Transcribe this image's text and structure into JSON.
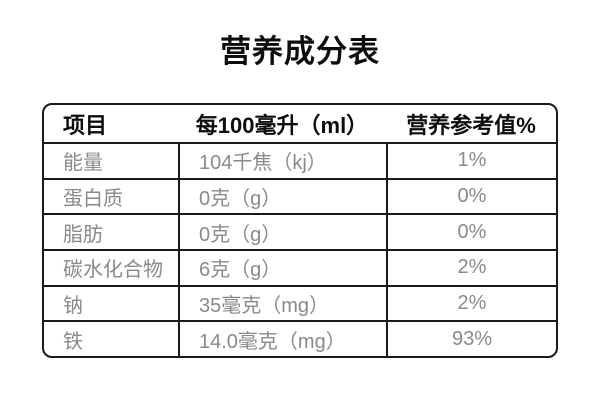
{
  "title": "营养成分表",
  "table": {
    "columns": {
      "item": "项目",
      "amount": "每100毫升（ml）",
      "nrv": "营养参考值%"
    },
    "rows": [
      {
        "item": "能量",
        "value": "104千焦（kj）",
        "nrv": "1%"
      },
      {
        "item": "蛋白质",
        "value": "0克（g）",
        "nrv": "0%"
      },
      {
        "item": "脂肪",
        "value": "0克（g）",
        "nrv": "0%"
      },
      {
        "item": "碳水化合物",
        "value": "6克（g）",
        "nrv": "2%"
      },
      {
        "item": "钠",
        "value": "35毫克（mg）",
        "nrv": "2%"
      },
      {
        "item": "铁",
        "value": "14.0毫克（mg）",
        "nrv": "93%"
      }
    ]
  },
  "colors": {
    "border": "#1a1a1a",
    "header_text": "#0d0d0d",
    "data_text": "#8a8a8a",
    "background": "#ffffff"
  }
}
